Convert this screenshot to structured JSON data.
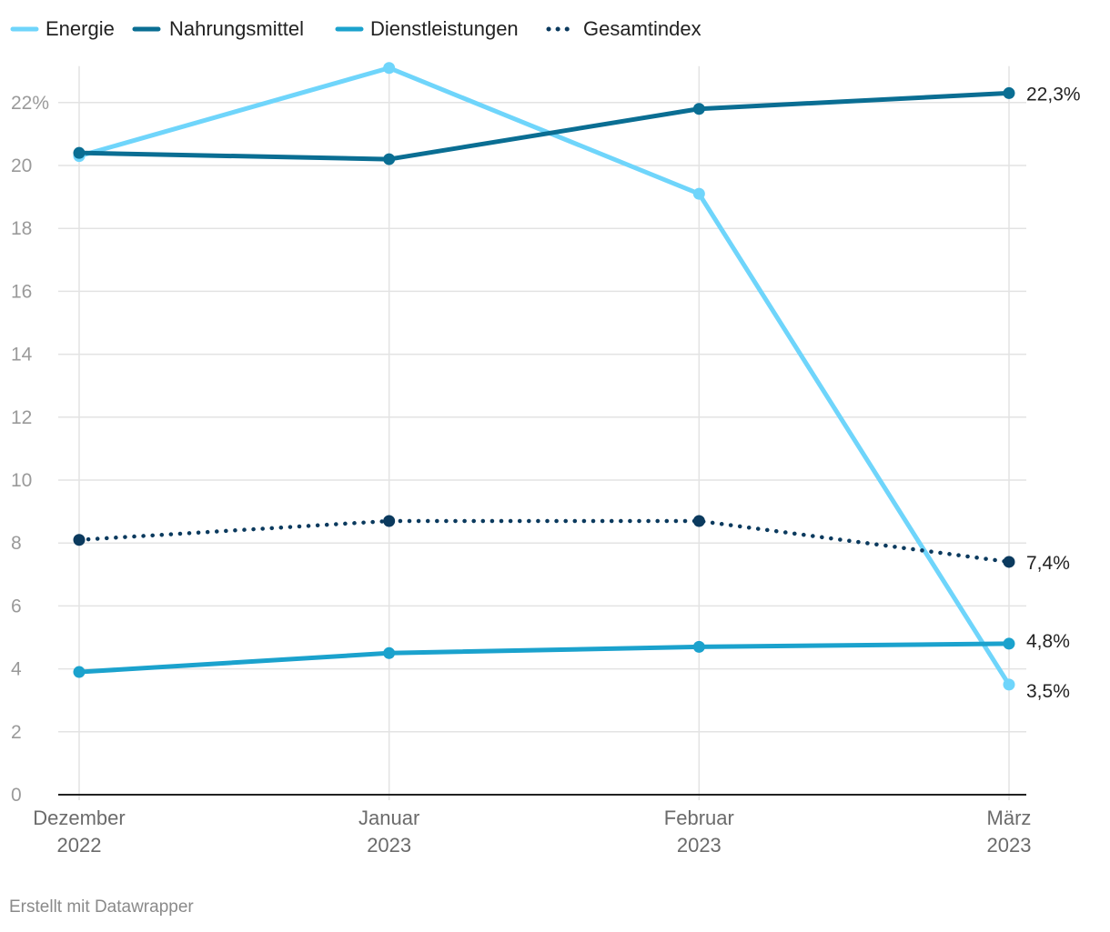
{
  "chart_data": {
    "type": "line",
    "categories": [
      {
        "line1": "Dezember",
        "line2": "2022"
      },
      {
        "line1": "Januar",
        "line2": "2023"
      },
      {
        "line1": "Februar",
        "line2": "2023"
      },
      {
        "line1": "März",
        "line2": "2023"
      }
    ],
    "series": [
      {
        "name": "Energie",
        "values": [
          20.3,
          23.1,
          19.1,
          3.5
        ],
        "color": "#6fd5fb",
        "style": "solid",
        "end_label": "3,5%"
      },
      {
        "name": "Nahrungsmittel",
        "values": [
          20.4,
          20.2,
          21.8,
          22.3
        ],
        "color": "#0a6e93",
        "style": "solid",
        "end_label": "22,3%"
      },
      {
        "name": "Dienstleistungen",
        "values": [
          3.9,
          4.5,
          4.7,
          4.8
        ],
        "color": "#1ba2cd",
        "style": "solid",
        "end_label": "4,8%"
      },
      {
        "name": "Gesamtindex",
        "values": [
          8.1,
          8.7,
          8.7,
          7.4
        ],
        "color": "#0b3a5e",
        "style": "dotted",
        "end_label": "7,4%"
      }
    ],
    "y_ticks": [
      {
        "value": 0,
        "label": "0"
      },
      {
        "value": 2,
        "label": "2"
      },
      {
        "value": 4,
        "label": "4"
      },
      {
        "value": 6,
        "label": "6"
      },
      {
        "value": 8,
        "label": "8"
      },
      {
        "value": 10,
        "label": "10"
      },
      {
        "value": 12,
        "label": "12"
      },
      {
        "value": 14,
        "label": "14"
      },
      {
        "value": 16,
        "label": "16"
      },
      {
        "value": 18,
        "label": "18"
      },
      {
        "value": 20,
        "label": "20"
      },
      {
        "value": 22,
        "label": "22%"
      }
    ],
    "ylim": [
      0,
      23.1
    ],
    "grid": true,
    "legend_position": "top-left",
    "title": "",
    "xlabel": "",
    "ylabel": ""
  },
  "footer": {
    "credit": "Erstellt mit Datawrapper"
  }
}
